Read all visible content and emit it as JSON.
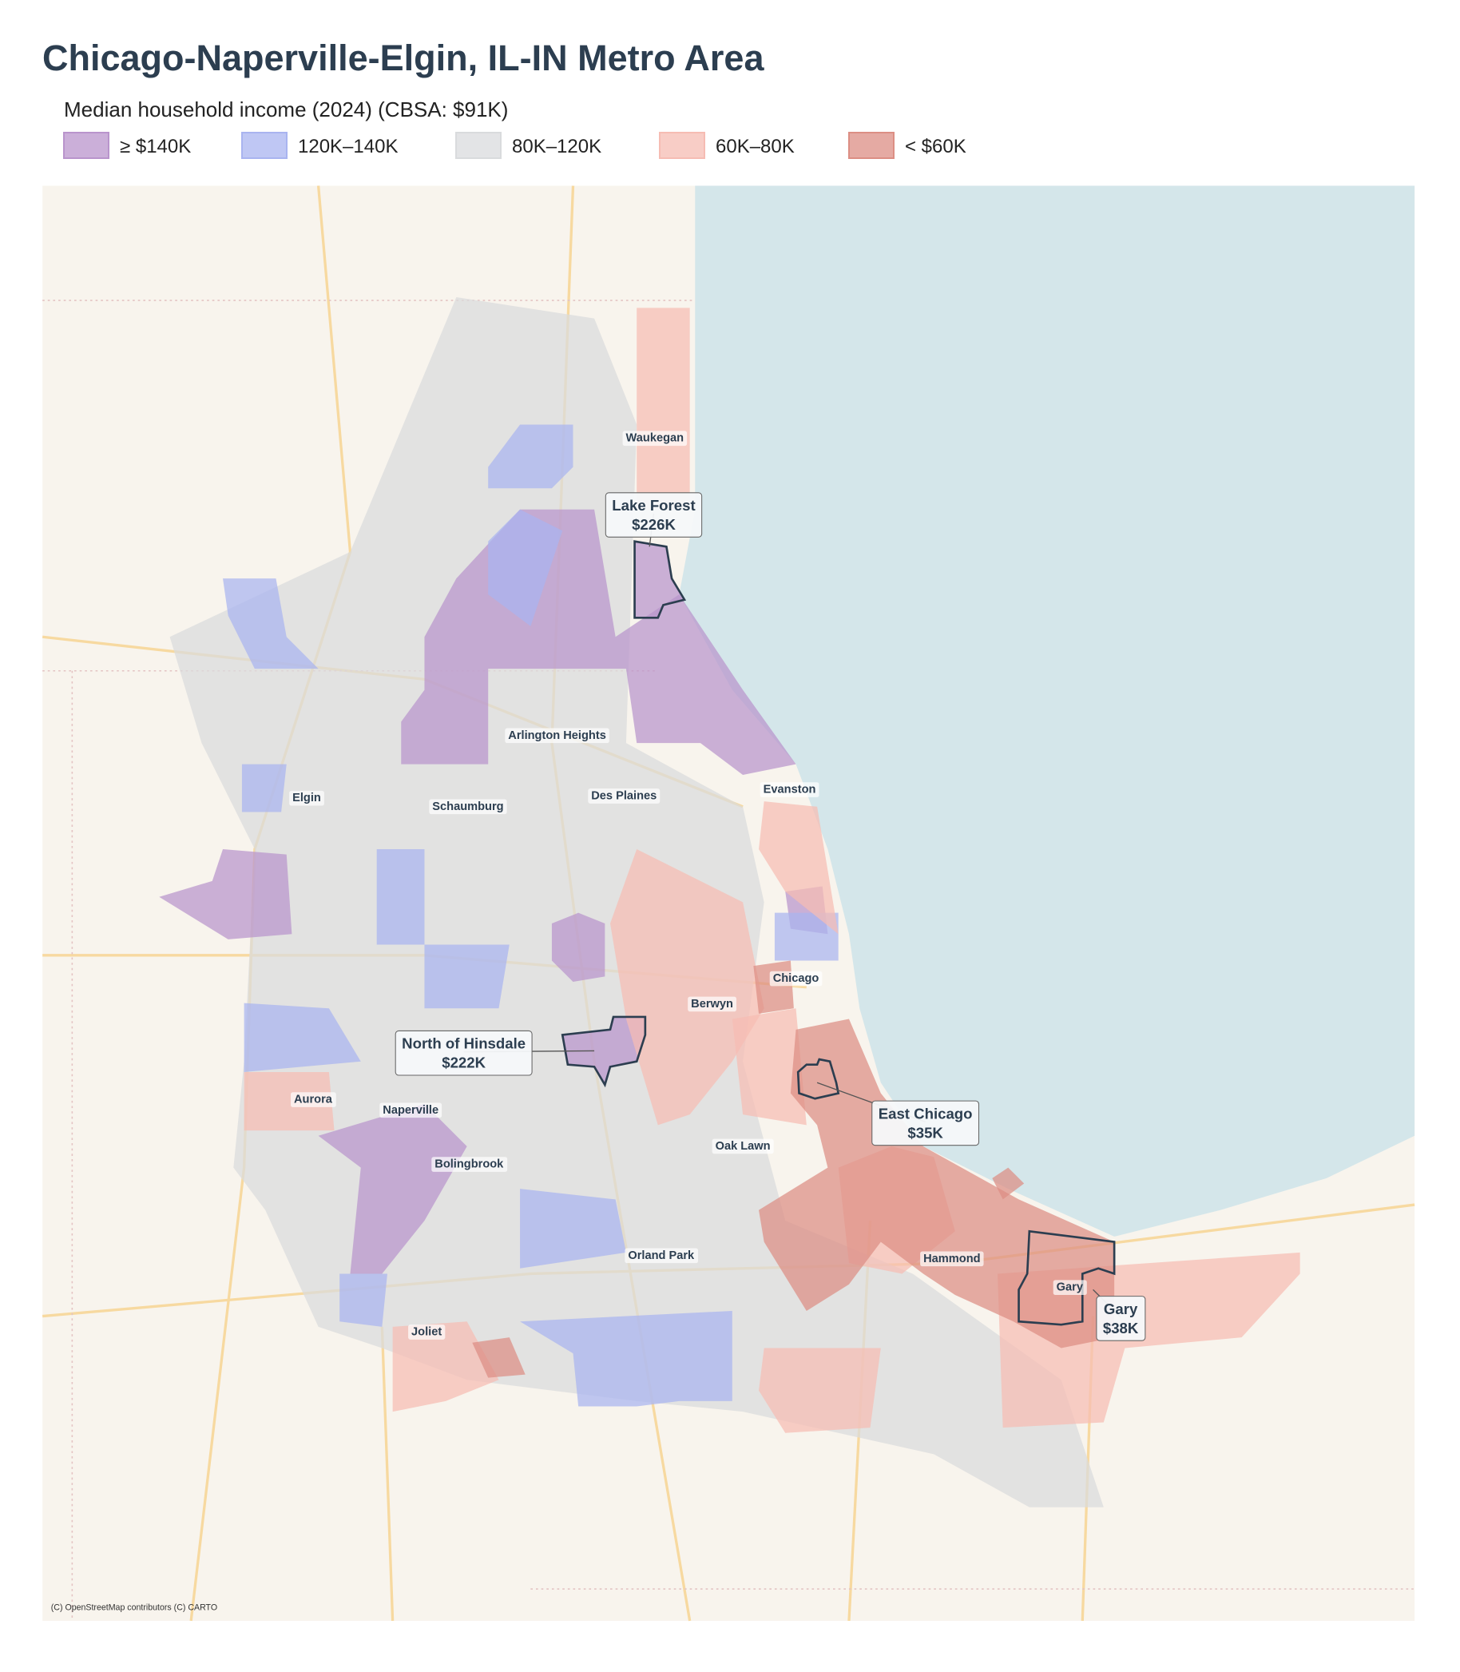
{
  "title": "Chicago-Naperville-Elgin, IL-IN Metro Area",
  "subtitle": "Median household income (2024)  (CBSA: $91K)",
  "legend": [
    {
      "label": "≥ $140K",
      "color": "#b994cc"
    },
    {
      "label": "120K–140K",
      "color": "#a9b4f0"
    },
    {
      "label": "80K–120K",
      "color": "#d9dbdd"
    },
    {
      "label": "60K–80K",
      "color": "#f6bcb3"
    },
    {
      "label": "< $60K",
      "color": "#dc8e84"
    }
  ],
  "places": [
    "Waukegan",
    "Arlington Heights",
    "Elgin",
    "Schaumburg",
    "Des Plaines",
    "Evanston",
    "Chicago",
    "Berwyn",
    "Aurora",
    "Naperville",
    "Bolingbrook",
    "Oak Lawn",
    "Orland Park",
    "Hammond",
    "Joliet",
    "Gary"
  ],
  "callouts": [
    {
      "name": "Lake Forest",
      "value": "$226K"
    },
    {
      "name": "North of Hinsdale",
      "value": "$222K"
    },
    {
      "name": "East Chicago",
      "value": "$35K"
    },
    {
      "name": "Gary",
      "value": "$38K"
    }
  ],
  "attribution": "(C) OpenStreetMap contributors (C) CARTO"
}
